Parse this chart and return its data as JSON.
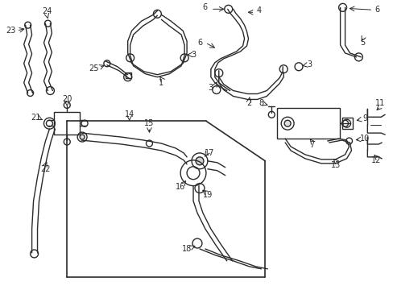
{
  "bg_color": "#ffffff",
  "lc": "#2a2a2a",
  "lw": 1.0,
  "fig_w": 4.89,
  "fig_h": 3.6
}
